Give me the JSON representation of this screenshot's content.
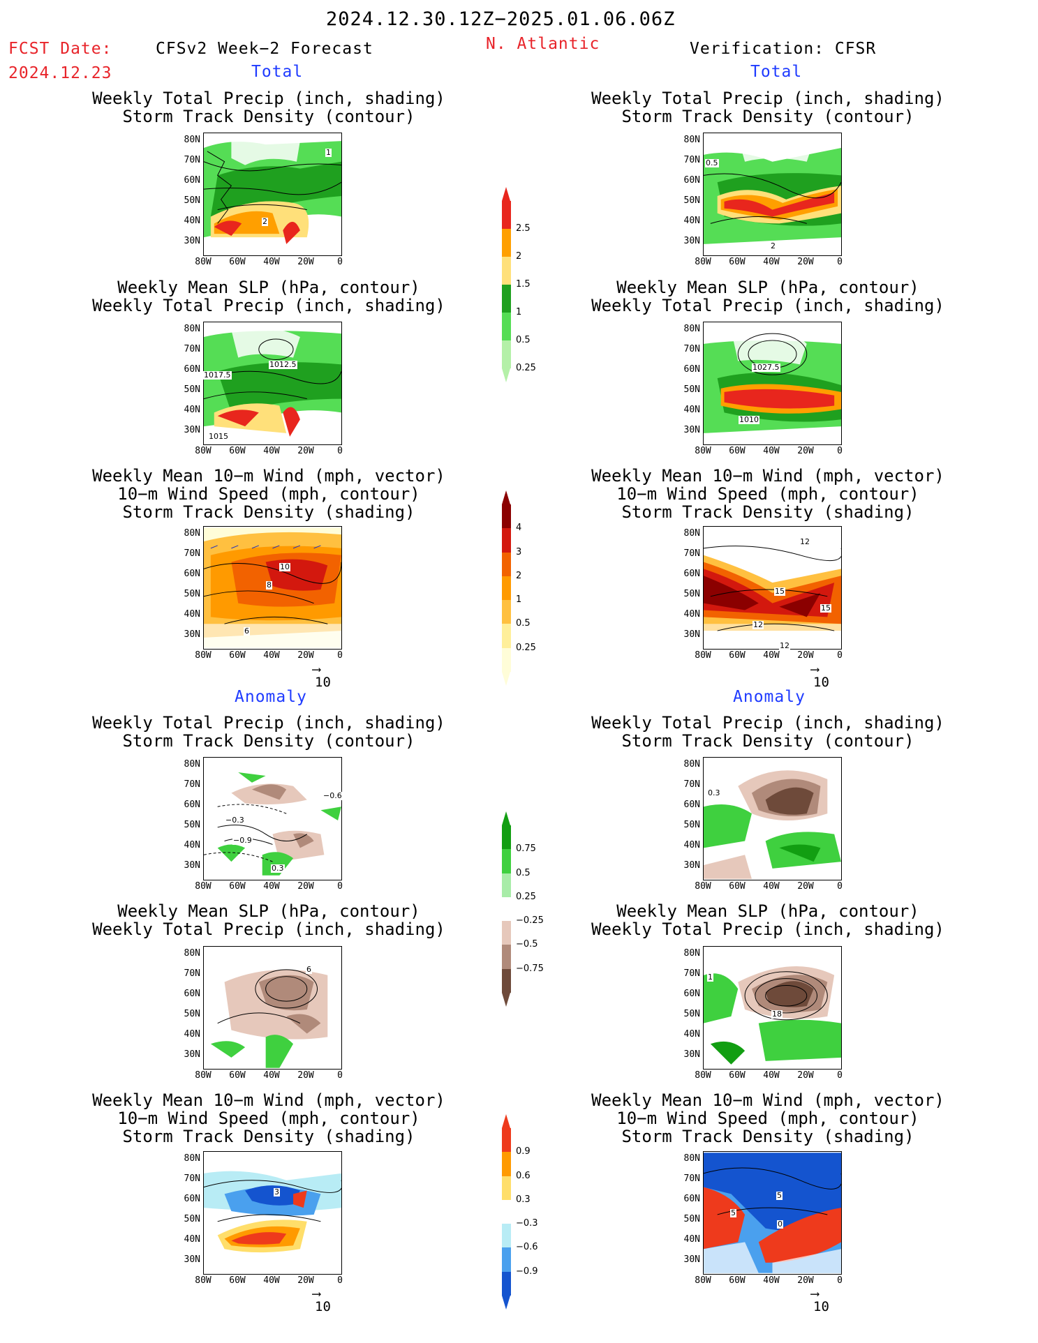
{
  "header": {
    "period": "2024.12.30.12Z−2025.01.06.06Z",
    "fcst_label": "FCST Date:",
    "fcst_date": "2024.12.23",
    "left_title": "CFSv2 Week−2 Forecast",
    "region": "N. Atlantic",
    "right_title": "Verification: CFSR"
  },
  "sections": {
    "total": "Total",
    "anomaly": "Anomaly"
  },
  "panel_titles": {
    "precip_track": [
      "Weekly Total Precip (inch, shading)",
      "Storm Track Density (contour)"
    ],
    "slp_precip": [
      "Weekly Mean SLP (hPa, contour)",
      "Weekly Total Precip (inch, shading)"
    ],
    "wind_track": [
      "Weekly Mean 10−m Wind (mph, vector)",
      "10−m Wind Speed (mph, contour)",
      "Storm Track Density (shading)"
    ]
  },
  "axes": {
    "lat_ticks": [
      "80N",
      "70N",
      "60N",
      "50N",
      "40N",
      "30N"
    ],
    "lon_ticks": [
      "80W",
      "60W",
      "40W",
      "20W",
      "0"
    ]
  },
  "vector_ref": "10",
  "colorbars": {
    "precip_total": {
      "labels": [
        "2.5",
        "2",
        "1.5",
        "1",
        "0.5",
        "0.25"
      ],
      "colors": [
        "#e8261d",
        "#ff9f00",
        "#ffe07a",
        "#1fa01f",
        "#55dd55",
        "#b4f0a8"
      ]
    },
    "track_total": {
      "labels": [
        "4",
        "3",
        "2",
        "1",
        "0.5",
        "0.25"
      ],
      "colors": [
        "#8b0000",
        "#d3180e",
        "#f26200",
        "#ff9a00",
        "#ffc040",
        "#ffef9a",
        "#fffdd8"
      ]
    },
    "precip_anom": {
      "labels": [
        "0.75",
        "0.5",
        "0.25",
        "−0.25",
        "−0.5",
        "−0.75"
      ],
      "colors": [
        "#129e12",
        "#3fd03f",
        "#a8eca8",
        "#ffffff",
        "#e6c8bb",
        "#b08a7a",
        "#6e4a3a"
      ]
    },
    "track_anom": {
      "labels": [
        "0.9",
        "0.6",
        "0.3",
        "−0.3",
        "−0.6",
        "−0.9"
      ],
      "colors": [
        "#ee3a1c",
        "#ff9a00",
        "#ffde6a",
        "#ffffff",
        "#b8ecf5",
        "#4aa0ee",
        "#1454cf"
      ]
    }
  },
  "contour_labels": {
    "fc_total_precip": [
      "1",
      "2"
    ],
    "vf_total_precip": [
      "0.5",
      "2"
    ],
    "fc_total_slp": [
      "1017.5",
      "1012.5",
      "1015"
    ],
    "vf_total_slp": [
      "1027.5",
      "1010"
    ],
    "fc_total_wind": [
      "10",
      "8",
      "6"
    ],
    "vf_total_wind": [
      "12",
      "15",
      "12",
      "15",
      "12"
    ],
    "fc_anom_precip": [
      "−0.6",
      "−0.3",
      "−0.9",
      "0.3"
    ],
    "vf_anom_precip": [
      "0.3"
    ],
    "fc_anom_slp": [
      "6"
    ],
    "vf_anom_slp": [
      "1",
      "18"
    ],
    "fc_anom_wind": [
      "3"
    ],
    "vf_anom_wind": [
      "5",
      "5",
      "0"
    ]
  }
}
